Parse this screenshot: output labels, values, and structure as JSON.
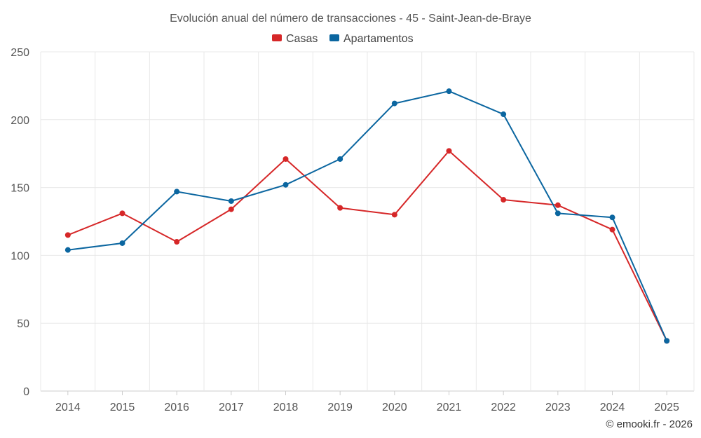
{
  "chart_data": {
    "type": "line",
    "title": "Evolución anual del número de transacciones - 45 - Saint-Jean-de-Braye",
    "xlabel": "",
    "ylabel": "",
    "categories": [
      "2014",
      "2015",
      "2016",
      "2017",
      "2018",
      "2019",
      "2020",
      "2021",
      "2022",
      "2023",
      "2024",
      "2025"
    ],
    "ylim": [
      0,
      250
    ],
    "yticks": [
      0,
      50,
      100,
      150,
      200,
      250
    ],
    "grid": true,
    "legend_position": "top-center",
    "series": [
      {
        "name": "Casas",
        "color": "#d62728",
        "values": [
          115,
          131,
          110,
          134,
          171,
          135,
          130,
          177,
          141,
          137,
          119,
          37
        ]
      },
      {
        "name": "Apartamentos",
        "color": "#0b66a0",
        "values": [
          104,
          109,
          147,
          140,
          152,
          171,
          212,
          221,
          204,
          131,
          128,
          37
        ]
      }
    ]
  },
  "credit": "© emooki.fr - 2026"
}
